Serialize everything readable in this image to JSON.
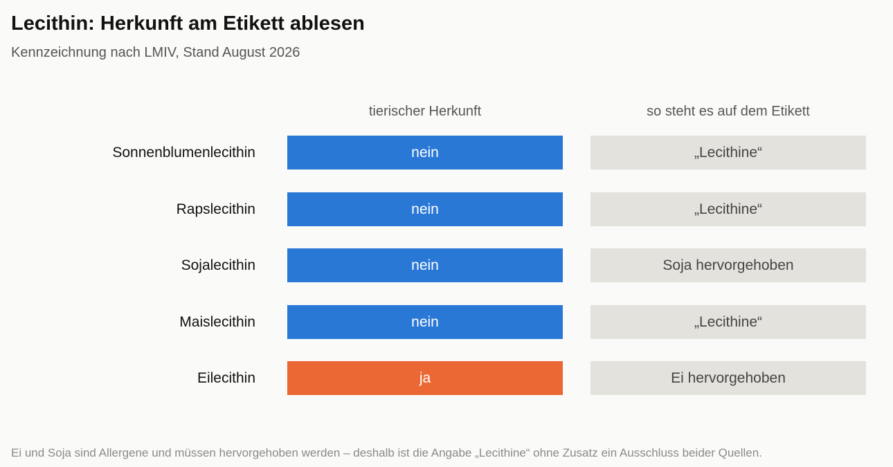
{
  "title": "Lecithin: Herkunft am Etikett ablesen",
  "subtitle": "Kennzeichnung nach LMIV, Stand August 2026",
  "footnote": "Ei und Soja sind Allergene und müssen hervorgehoben werden – deshalb ist die Angabe „Lecithine“ ohne Zusatz ein Ausschluss beider Quellen.",
  "colors": {
    "nein": "#2a78d6",
    "ja": "#eb6834",
    "label_bg": "#e3e2dd"
  },
  "chart_data": {
    "type": "table",
    "columns": [
      "tierischer Herkunft",
      "so steht es auf dem Etikett"
    ],
    "rows": [
      {
        "name": "Sonnenblumenlecithin",
        "animal_origin": "nein",
        "label_text": "„Lecithine“"
      },
      {
        "name": "Rapslecithin",
        "animal_origin": "nein",
        "label_text": "„Lecithine“"
      },
      {
        "name": "Sojalecithin",
        "animal_origin": "nein",
        "label_text": "Soja hervorgehoben"
      },
      {
        "name": "Maislecithin",
        "animal_origin": "nein",
        "label_text": "„Lecithine“"
      },
      {
        "name": "Eilecithin",
        "animal_origin": "ja",
        "label_text": "Ei hervorgehoben"
      }
    ]
  }
}
